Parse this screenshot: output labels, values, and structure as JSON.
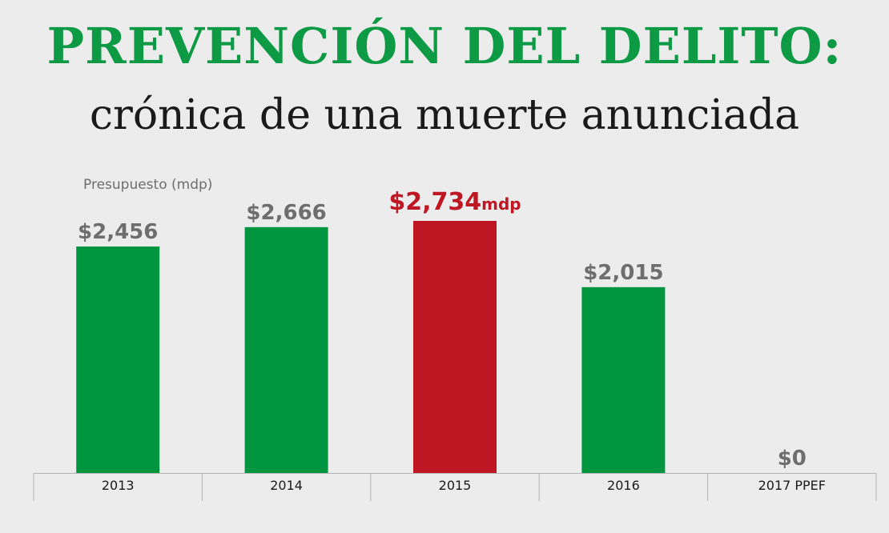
{
  "header": {
    "title": "PREVENCIÓN DEL DELITO:",
    "subtitle": "crónica de una muerte anunciada"
  },
  "chart_data": {
    "type": "bar",
    "title": "PREVENCIÓN DEL DELITO:",
    "subtitle": "crónica de una muerte anunciada",
    "ylabel": "Presupuesto (mdp)",
    "xlabel": "",
    "categories": [
      "2013",
      "2014",
      "2015",
      "2016",
      "2017 PPEF"
    ],
    "values": [
      2456,
      2666,
      2734,
      2015,
      0
    ],
    "value_labels": [
      "$2,456",
      "$2,666",
      "$2,734",
      "$2,015",
      "$0"
    ],
    "highlight_index": 2,
    "highlight_suffix": "mdp",
    "ylim": [
      0,
      2734
    ],
    "grid": false,
    "colors": {
      "bar": "#009640",
      "highlight": "#be1622",
      "label": "#6e6e6e",
      "title": "#0d9a45",
      "axis": "#b3b3b3"
    }
  }
}
